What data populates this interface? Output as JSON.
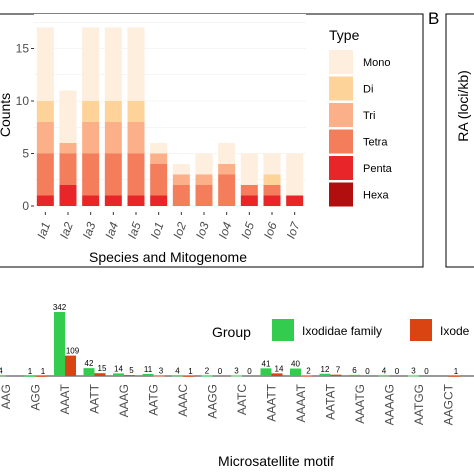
{
  "chart_data": [
    {
      "type": "bar",
      "stacked": true,
      "panel_label": "",
      "ylabel": "Counts",
      "xlabel": "Species and Mitogenome",
      "ylim": [
        0,
        17.5
      ],
      "yticks": [
        0,
        5,
        10,
        15
      ],
      "categories": [
        "Ia1",
        "Ia2",
        "Ia3",
        "Ia4",
        "Ia5",
        "Io1",
        "Io2",
        "Io3",
        "Io4",
        "Io5",
        "Io6",
        "Io7"
      ],
      "legend_title": "Type",
      "legend_position": "right",
      "series": [
        {
          "name": "Hexa",
          "color": "#b10f0f",
          "values": [
            0,
            0,
            0,
            0,
            0,
            0,
            0,
            0,
            0,
            0,
            0,
            0
          ]
        },
        {
          "name": "Penta",
          "color": "#e8262a",
          "values": [
            1,
            2,
            1,
            1,
            1,
            1,
            0,
            0,
            0,
            1,
            1,
            1
          ]
        },
        {
          "name": "Tetra",
          "color": "#f47d5c",
          "values": [
            4,
            3,
            4,
            4,
            4,
            3,
            2,
            2,
            3,
            1,
            1,
            0
          ]
        },
        {
          "name": "Tri",
          "color": "#fbb08a",
          "values": [
            3,
            1,
            3,
            3,
            3,
            1,
            1,
            1,
            1,
            0,
            0,
            0
          ]
        },
        {
          "name": "Di",
          "color": "#fdd39a",
          "values": [
            2,
            0,
            2,
            2,
            2,
            0,
            0,
            0,
            0,
            0,
            1,
            0
          ]
        },
        {
          "name": "Mono",
          "color": "#feeedd",
          "values": [
            7,
            5,
            7,
            7,
            7,
            1,
            1,
            2,
            2,
            3,
            2,
            4
          ]
        }
      ]
    },
    {
      "type": "bar",
      "panel_label": "B",
      "ylabel": "RA (loci/kb)"
    },
    {
      "type": "bar",
      "xlabel": "Microsatellite motif",
      "legend_title": "Group",
      "ymax": 342,
      "categories": [
        "AAG",
        "AGG",
        "AAAT",
        "AATT",
        "AAAG",
        "AATG",
        "AAAC",
        "AAGG",
        "AATC",
        "AAATT",
        "AAAAT",
        "AATAT",
        "AAATG",
        "AAAAG",
        "AATGG",
        "AAGCT"
      ],
      "series": [
        {
          "name": "Ixodidae family",
          "color": "#33cc4f",
          "values": [
            4,
            1,
            342,
            42,
            14,
            11,
            4,
            2,
            3,
            41,
            40,
            12,
            6,
            4,
            3,
            0
          ],
          "labels": [
            "4",
            "1",
            "342",
            "42",
            "14",
            "11",
            "4",
            "2",
            "3",
            "41",
            "40",
            "12",
            "6",
            "4",
            "3",
            ""
          ]
        },
        {
          "name": "Ixode",
          "color": "#d94412",
          "values": [
            0,
            1,
            109,
            15,
            5,
            3,
            1,
            0,
            0,
            14,
            2,
            7,
            0,
            0,
            0,
            1
          ],
          "labels": [
            "",
            "1",
            "109",
            "15",
            "5",
            "3",
            "1",
            "0",
            "0",
            "14",
            "2",
            "7",
            "0",
            "0",
            "0",
            "1"
          ]
        }
      ]
    }
  ]
}
